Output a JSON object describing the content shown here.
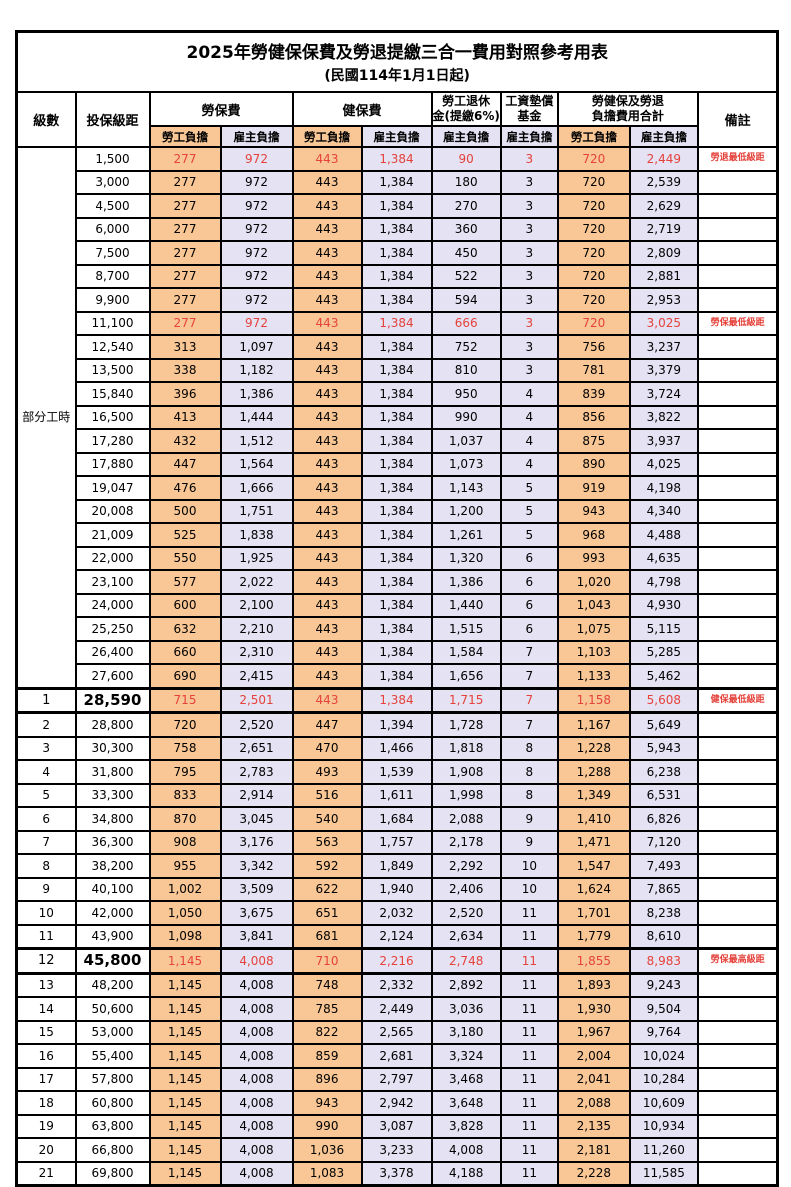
{
  "title": "2025年勞健保保費及勞退提繳三合一費用對照參考用表",
  "subtitle": "(民國114年1月1日起)",
  "header": {
    "level": "級數",
    "bracket": "投保級距",
    "labor": "勞保費",
    "health": "健保費",
    "pension": [
      "勞工退休",
      "金(提繳6%)"
    ],
    "wage_fund": [
      "工資墊償",
      "基金"
    ],
    "total": [
      "勞健保及勞退",
      "負擔費用合計"
    ],
    "remark": "備註",
    "employee": "勞工負擔",
    "employer": "雇主負擔"
  },
  "part_time": {
    "label": "部分工時",
    "rowspan": 23
  },
  "colors": {
    "employee_bg": "#F9C795",
    "employer_bg": "#E4E2F3",
    "highlight_red": "#E5423B",
    "border": "#000000"
  },
  "rows": [
    {
      "level": "",
      "bracket": "1,500",
      "values": [
        "277",
        "972",
        "443",
        "1,384",
        "90",
        "3",
        "720",
        "2,449"
      ],
      "remark": "勞退最低級距",
      "flags": "red"
    },
    {
      "level": "",
      "bracket": "3,000",
      "values": [
        "277",
        "972",
        "443",
        "1,384",
        "180",
        "3",
        "720",
        "2,539"
      ],
      "remark": "",
      "flags": ""
    },
    {
      "level": "",
      "bracket": "4,500",
      "values": [
        "277",
        "972",
        "443",
        "1,384",
        "270",
        "3",
        "720",
        "2,629"
      ],
      "remark": "",
      "flags": ""
    },
    {
      "level": "",
      "bracket": "6,000",
      "values": [
        "277",
        "972",
        "443",
        "1,384",
        "360",
        "3",
        "720",
        "2,719"
      ],
      "remark": "",
      "flags": ""
    },
    {
      "level": "",
      "bracket": "7,500",
      "values": [
        "277",
        "972",
        "443",
        "1,384",
        "450",
        "3",
        "720",
        "2,809"
      ],
      "remark": "",
      "flags": ""
    },
    {
      "level": "",
      "bracket": "8,700",
      "values": [
        "277",
        "972",
        "443",
        "1,384",
        "522",
        "3",
        "720",
        "2,881"
      ],
      "remark": "",
      "flags": ""
    },
    {
      "level": "",
      "bracket": "9,900",
      "values": [
        "277",
        "972",
        "443",
        "1,384",
        "594",
        "3",
        "720",
        "2,953"
      ],
      "remark": "",
      "flags": ""
    },
    {
      "level": "",
      "bracket": "11,100",
      "values": [
        "277",
        "972",
        "443",
        "1,384",
        "666",
        "3",
        "720",
        "3,025"
      ],
      "remark": "勞保最低級距",
      "flags": "red"
    },
    {
      "level": "",
      "bracket": "12,540",
      "values": [
        "313",
        "1,097",
        "443",
        "1,384",
        "752",
        "3",
        "756",
        "3,237"
      ],
      "remark": "",
      "flags": ""
    },
    {
      "level": "",
      "bracket": "13,500",
      "values": [
        "338",
        "1,182",
        "443",
        "1,384",
        "810",
        "3",
        "781",
        "3,379"
      ],
      "remark": "",
      "flags": ""
    },
    {
      "level": "",
      "bracket": "15,840",
      "values": [
        "396",
        "1,386",
        "443",
        "1,384",
        "950",
        "4",
        "839",
        "3,724"
      ],
      "remark": "",
      "flags": ""
    },
    {
      "level": "",
      "bracket": "16,500",
      "values": [
        "413",
        "1,444",
        "443",
        "1,384",
        "990",
        "4",
        "856",
        "3,822"
      ],
      "remark": "",
      "flags": ""
    },
    {
      "level": "",
      "bracket": "17,280",
      "values": [
        "432",
        "1,512",
        "443",
        "1,384",
        "1,037",
        "4",
        "875",
        "3,937"
      ],
      "remark": "",
      "flags": ""
    },
    {
      "level": "",
      "bracket": "17,880",
      "values": [
        "447",
        "1,564",
        "443",
        "1,384",
        "1,073",
        "4",
        "890",
        "4,025"
      ],
      "remark": "",
      "flags": ""
    },
    {
      "level": "",
      "bracket": "19,047",
      "values": [
        "476",
        "1,666",
        "443",
        "1,384",
        "1,143",
        "5",
        "919",
        "4,198"
      ],
      "remark": "",
      "flags": ""
    },
    {
      "level": "",
      "bracket": "20,008",
      "values": [
        "500",
        "1,751",
        "443",
        "1,384",
        "1,200",
        "5",
        "943",
        "4,340"
      ],
      "remark": "",
      "flags": ""
    },
    {
      "level": "",
      "bracket": "21,009",
      "values": [
        "525",
        "1,838",
        "443",
        "1,384",
        "1,261",
        "5",
        "968",
        "4,488"
      ],
      "remark": "",
      "flags": ""
    },
    {
      "level": "",
      "bracket": "22,000",
      "values": [
        "550",
        "1,925",
        "443",
        "1,384",
        "1,320",
        "6",
        "993",
        "4,635"
      ],
      "remark": "",
      "flags": ""
    },
    {
      "level": "",
      "bracket": "23,100",
      "values": [
        "577",
        "2,022",
        "443",
        "1,384",
        "1,386",
        "6",
        "1,020",
        "4,798"
      ],
      "remark": "",
      "flags": ""
    },
    {
      "level": "",
      "bracket": "24,000",
      "values": [
        "600",
        "2,100",
        "443",
        "1,384",
        "1,440",
        "6",
        "1,043",
        "4,930"
      ],
      "remark": "",
      "flags": ""
    },
    {
      "level": "",
      "bracket": "25,250",
      "values": [
        "632",
        "2,210",
        "443",
        "1,384",
        "1,515",
        "6",
        "1,075",
        "5,115"
      ],
      "remark": "",
      "flags": ""
    },
    {
      "level": "",
      "bracket": "26,400",
      "values": [
        "660",
        "2,310",
        "443",
        "1,384",
        "1,584",
        "7",
        "1,103",
        "5,285"
      ],
      "remark": "",
      "flags": ""
    },
    {
      "level": "",
      "bracket": "27,600",
      "values": [
        "690",
        "2,415",
        "443",
        "1,384",
        "1,656",
        "7",
        "1,133",
        "5,462"
      ],
      "remark": "",
      "flags": ""
    },
    {
      "level": "1",
      "bracket": "28,590",
      "values": [
        "715",
        "2,501",
        "443",
        "1,384",
        "1,715",
        "7",
        "1,158",
        "5,608"
      ],
      "remark": "健保最低級距",
      "flags": "red em"
    },
    {
      "level": "2",
      "bracket": "28,800",
      "values": [
        "720",
        "2,520",
        "447",
        "1,394",
        "1,728",
        "7",
        "1,167",
        "5,649"
      ],
      "remark": "",
      "flags": ""
    },
    {
      "level": "3",
      "bracket": "30,300",
      "values": [
        "758",
        "2,651",
        "470",
        "1,466",
        "1,818",
        "8",
        "1,228",
        "5,943"
      ],
      "remark": "",
      "flags": ""
    },
    {
      "level": "4",
      "bracket": "31,800",
      "values": [
        "795",
        "2,783",
        "493",
        "1,539",
        "1,908",
        "8",
        "1,288",
        "6,238"
      ],
      "remark": "",
      "flags": ""
    },
    {
      "level": "5",
      "bracket": "33,300",
      "values": [
        "833",
        "2,914",
        "516",
        "1,611",
        "1,998",
        "8",
        "1,349",
        "6,531"
      ],
      "remark": "",
      "flags": ""
    },
    {
      "level": "6",
      "bracket": "34,800",
      "values": [
        "870",
        "3,045",
        "540",
        "1,684",
        "2,088",
        "9",
        "1,410",
        "6,826"
      ],
      "remark": "",
      "flags": ""
    },
    {
      "level": "7",
      "bracket": "36,300",
      "values": [
        "908",
        "3,176",
        "563",
        "1,757",
        "2,178",
        "9",
        "1,471",
        "7,120"
      ],
      "remark": "",
      "flags": ""
    },
    {
      "level": "8",
      "bracket": "38,200",
      "values": [
        "955",
        "3,342",
        "592",
        "1,849",
        "2,292",
        "10",
        "1,547",
        "7,493"
      ],
      "remark": "",
      "flags": ""
    },
    {
      "level": "9",
      "bracket": "40,100",
      "values": [
        "1,002",
        "3,509",
        "622",
        "1,940",
        "2,406",
        "10",
        "1,624",
        "7,865"
      ],
      "remark": "",
      "flags": ""
    },
    {
      "level": "10",
      "bracket": "42,000",
      "values": [
        "1,050",
        "3,675",
        "651",
        "2,032",
        "2,520",
        "11",
        "1,701",
        "8,238"
      ],
      "remark": "",
      "flags": ""
    },
    {
      "level": "11",
      "bracket": "43,900",
      "values": [
        "1,098",
        "3,841",
        "681",
        "2,124",
        "2,634",
        "11",
        "1,779",
        "8,610"
      ],
      "remark": "",
      "flags": ""
    },
    {
      "level": "12",
      "bracket": "45,800",
      "values": [
        "1,145",
        "4,008",
        "710",
        "2,216",
        "2,748",
        "11",
        "1,855",
        "8,983"
      ],
      "remark": "勞保最高級距",
      "flags": "red em"
    },
    {
      "level": "13",
      "bracket": "48,200",
      "values": [
        "1,145",
        "4,008",
        "748",
        "2,332",
        "2,892",
        "11",
        "1,893",
        "9,243"
      ],
      "remark": "",
      "flags": ""
    },
    {
      "level": "14",
      "bracket": "50,600",
      "values": [
        "1,145",
        "4,008",
        "785",
        "2,449",
        "3,036",
        "11",
        "1,930",
        "9,504"
      ],
      "remark": "",
      "flags": ""
    },
    {
      "level": "15",
      "bracket": "53,000",
      "values": [
        "1,145",
        "4,008",
        "822",
        "2,565",
        "3,180",
        "11",
        "1,967",
        "9,764"
      ],
      "remark": "",
      "flags": ""
    },
    {
      "level": "16",
      "bracket": "55,400",
      "values": [
        "1,145",
        "4,008",
        "859",
        "2,681",
        "3,324",
        "11",
        "2,004",
        "10,024"
      ],
      "remark": "",
      "flags": ""
    },
    {
      "level": "17",
      "bracket": "57,800",
      "values": [
        "1,145",
        "4,008",
        "896",
        "2,797",
        "3,468",
        "11",
        "2,041",
        "10,284"
      ],
      "remark": "",
      "flags": ""
    },
    {
      "level": "18",
      "bracket": "60,800",
      "values": [
        "1,145",
        "4,008",
        "943",
        "2,942",
        "3,648",
        "11",
        "2,088",
        "10,609"
      ],
      "remark": "",
      "flags": ""
    },
    {
      "level": "19",
      "bracket": "63,800",
      "values": [
        "1,145",
        "4,008",
        "990",
        "3,087",
        "3,828",
        "11",
        "2,135",
        "10,934"
      ],
      "remark": "",
      "flags": ""
    },
    {
      "level": "20",
      "bracket": "66,800",
      "values": [
        "1,145",
        "4,008",
        "1,036",
        "3,233",
        "4,008",
        "11",
        "2,181",
        "11,260"
      ],
      "remark": "",
      "flags": ""
    },
    {
      "level": "21",
      "bracket": "69,800",
      "values": [
        "1,145",
        "4,008",
        "1,083",
        "3,378",
        "4,188",
        "11",
        "2,228",
        "11,585"
      ],
      "remark": "",
      "flags": ""
    }
  ]
}
